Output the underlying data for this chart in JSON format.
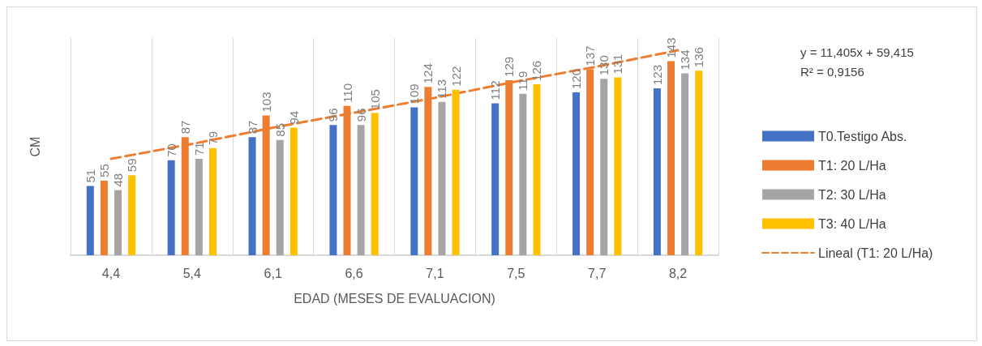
{
  "chart_data": {
    "type": "bar",
    "xlabel": "EDAD (MESES DE EVALUACION)",
    "ylabel": "CM",
    "categories": [
      "4,4",
      "5,4",
      "6,1",
      "6,6",
      "7,1",
      "7,5",
      "7,7",
      "8,2"
    ],
    "series": [
      {
        "name": "T0.Testigo Abs.",
        "color": "#4472c4",
        "values": [
          51,
          70,
          87,
          96,
          109,
          112,
          120,
          123
        ],
        "value_labels": [
          "51",
          "70",
          "87",
          "96",
          "109",
          "112",
          "120",
          "123"
        ]
      },
      {
        "name": "T1: 20 L/Ha",
        "color": "#ed7d31",
        "values": [
          55,
          87,
          103,
          110,
          124,
          129,
          137,
          143
        ],
        "value_labels": [
          "55",
          "87",
          "103",
          "110",
          "124",
          "129",
          "137",
          "143"
        ]
      },
      {
        "name": "T2: 30 L/Ha",
        "color": "#a5a5a5",
        "values": [
          48,
          71,
          85,
          96,
          113,
          119,
          130,
          134
        ],
        "value_labels": [
          "48",
          "71",
          "85",
          "96",
          "113",
          "119",
          "130",
          "134"
        ]
      },
      {
        "name": "T3: 40 L/Ha",
        "color": "#ffc000",
        "values": [
          59,
          79,
          94,
          105,
          122,
          126,
          131,
          136
        ],
        "value_labels": [
          "59",
          "79",
          "94",
          "105",
          "122",
          "126",
          "131",
          "136"
        ]
      },
      {
        "name": "Lineal (T1: 20 L/Ha)",
        "type": "line",
        "color": "#ed7d31",
        "line_style": "dashed",
        "marker": "none",
        "values": [
          71,
          82,
          94,
          105,
          116,
          128,
          139,
          151
        ]
      }
    ],
    "ylim": [
      0,
      160
    ],
    "tick_labels": "x",
    "grid": "x",
    "legend": "right",
    "annotations": [
      "y = 11,405x + 59,415",
      "R² = 0,9156"
    ]
  }
}
